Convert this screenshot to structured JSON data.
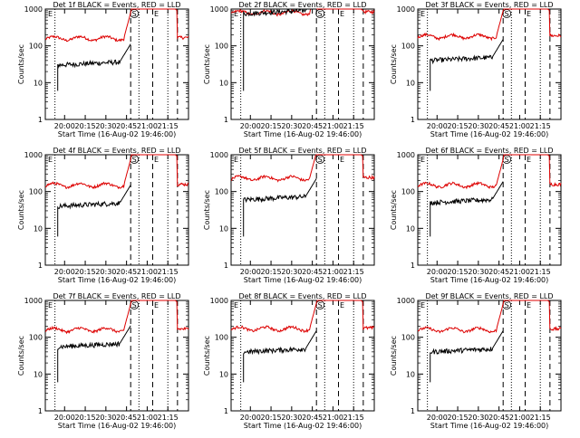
{
  "chart_data": {
    "type": "line",
    "y_scale": "log",
    "ylim": [
      1,
      1000
    ],
    "ylabel": "Counts/sec",
    "xlabel": "Start Time (16-Aug-02 19:46:00)",
    "time_range": [
      "19:46",
      "21:30"
    ],
    "xticks": [
      "20:00",
      "20:15",
      "20:30",
      "20:45",
      "21:00",
      "21:15"
    ],
    "yticks": [
      "1",
      "10",
      "100",
      "1000"
    ],
    "markers": {
      "start_label": "S",
      "end_label": "E",
      "dotted_times": [
        "19:53",
        "20:54",
        "21:15"
      ],
      "dashed_times": [
        "20:48",
        "21:04",
        "21:22"
      ]
    },
    "colors": {
      "events": "#000000",
      "lld": "#dd0000"
    },
    "panels": [
      {
        "title": "Det 1f BLACK = Events, RED = LLD",
        "events_level": 30,
        "lld_level": 160
      },
      {
        "title": "Det 2f BLACK = Events, RED = LLD",
        "events_level": 750,
        "lld_level": 800
      },
      {
        "title": "Det 3f BLACK = Events, RED = LLD",
        "events_level": 40,
        "lld_level": 180
      },
      {
        "title": "Det 4f BLACK = Events, RED = LLD",
        "events_level": 40,
        "lld_level": 150
      },
      {
        "title": "Det 5f BLACK = Events, RED = LLD",
        "events_level": 60,
        "lld_level": 230
      },
      {
        "title": "Det 6f BLACK = Events, RED = LLD",
        "events_level": 50,
        "lld_level": 150
      },
      {
        "title": "Det 7f BLACK = Events, RED = LLD",
        "events_level": 55,
        "lld_level": 160
      },
      {
        "title": "Det 8f BLACK = Events, RED = LLD",
        "events_level": 40,
        "lld_level": 170
      },
      {
        "title": "Det 9f BLACK = Events, RED = LLD",
        "events_level": 40,
        "lld_level": 160
      }
    ]
  }
}
